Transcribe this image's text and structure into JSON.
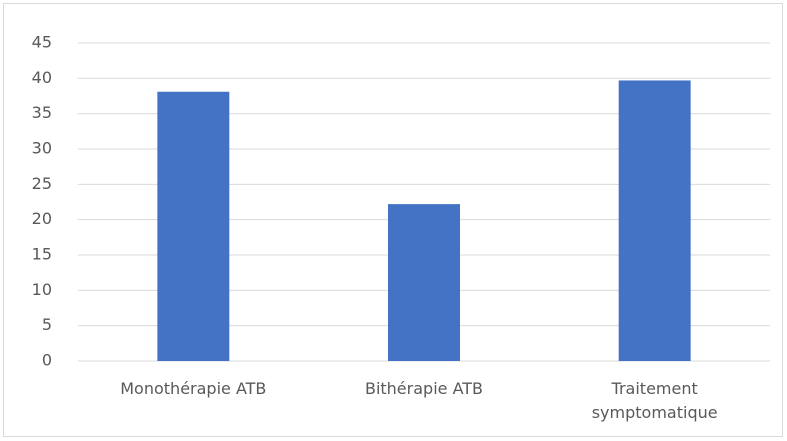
{
  "chart_data": {
    "type": "bar",
    "categories": [
      "Monothérapie ATB",
      "Bithérapie ATB",
      "Traitement symptomatique"
    ],
    "values": [
      38.1,
      22.2,
      39.7
    ],
    "color": "#4472c4",
    "ylim": [
      0,
      45
    ],
    "yticks": [
      0,
      5,
      10,
      15,
      20,
      25,
      30,
      35,
      40,
      45
    ],
    "grid": true
  }
}
